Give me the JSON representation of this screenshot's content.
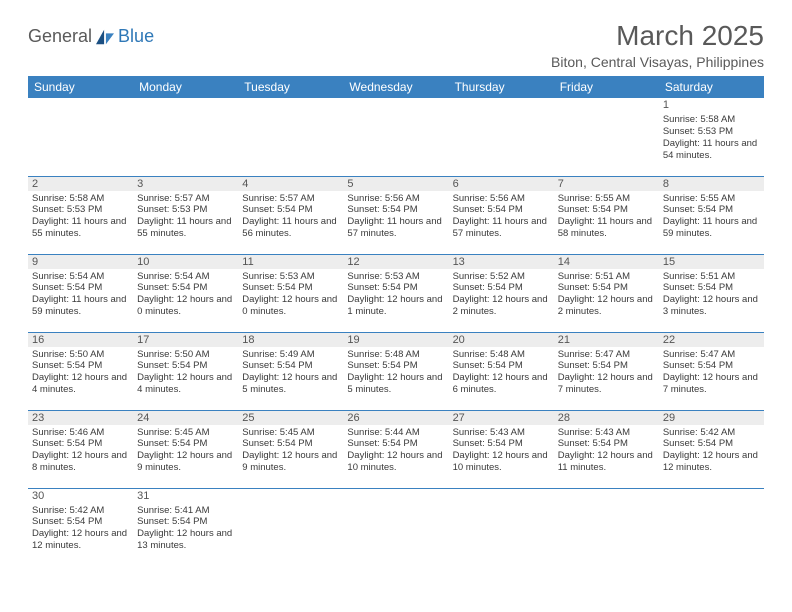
{
  "logo": {
    "text1": "General",
    "text2": "Blue"
  },
  "title": "March 2025",
  "location": "Biton, Central Visayas, Philippines",
  "colors": {
    "header_bg": "#3a81c0",
    "header_fg": "#ffffff",
    "divider": "#3a81c0",
    "daynum_bg": "#ededed",
    "text": "#595959"
  },
  "weekdays": [
    "Sunday",
    "Monday",
    "Tuesday",
    "Wednesday",
    "Thursday",
    "Friday",
    "Saturday"
  ],
  "weeks": [
    [
      null,
      null,
      null,
      null,
      null,
      null,
      {
        "n": "1",
        "sunrise": "Sunrise: 5:58 AM",
        "sunset": "Sunset: 5:53 PM",
        "daylight": "Daylight: 11 hours and 54 minutes."
      }
    ],
    [
      {
        "n": "2",
        "sunrise": "Sunrise: 5:58 AM",
        "sunset": "Sunset: 5:53 PM",
        "daylight": "Daylight: 11 hours and 55 minutes."
      },
      {
        "n": "3",
        "sunrise": "Sunrise: 5:57 AM",
        "sunset": "Sunset: 5:53 PM",
        "daylight": "Daylight: 11 hours and 55 minutes."
      },
      {
        "n": "4",
        "sunrise": "Sunrise: 5:57 AM",
        "sunset": "Sunset: 5:54 PM",
        "daylight": "Daylight: 11 hours and 56 minutes."
      },
      {
        "n": "5",
        "sunrise": "Sunrise: 5:56 AM",
        "sunset": "Sunset: 5:54 PM",
        "daylight": "Daylight: 11 hours and 57 minutes."
      },
      {
        "n": "6",
        "sunrise": "Sunrise: 5:56 AM",
        "sunset": "Sunset: 5:54 PM",
        "daylight": "Daylight: 11 hours and 57 minutes."
      },
      {
        "n": "7",
        "sunrise": "Sunrise: 5:55 AM",
        "sunset": "Sunset: 5:54 PM",
        "daylight": "Daylight: 11 hours and 58 minutes."
      },
      {
        "n": "8",
        "sunrise": "Sunrise: 5:55 AM",
        "sunset": "Sunset: 5:54 PM",
        "daylight": "Daylight: 11 hours and 59 minutes."
      }
    ],
    [
      {
        "n": "9",
        "sunrise": "Sunrise: 5:54 AM",
        "sunset": "Sunset: 5:54 PM",
        "daylight": "Daylight: 11 hours and 59 minutes."
      },
      {
        "n": "10",
        "sunrise": "Sunrise: 5:54 AM",
        "sunset": "Sunset: 5:54 PM",
        "daylight": "Daylight: 12 hours and 0 minutes."
      },
      {
        "n": "11",
        "sunrise": "Sunrise: 5:53 AM",
        "sunset": "Sunset: 5:54 PM",
        "daylight": "Daylight: 12 hours and 0 minutes."
      },
      {
        "n": "12",
        "sunrise": "Sunrise: 5:53 AM",
        "sunset": "Sunset: 5:54 PM",
        "daylight": "Daylight: 12 hours and 1 minute."
      },
      {
        "n": "13",
        "sunrise": "Sunrise: 5:52 AM",
        "sunset": "Sunset: 5:54 PM",
        "daylight": "Daylight: 12 hours and 2 minutes."
      },
      {
        "n": "14",
        "sunrise": "Sunrise: 5:51 AM",
        "sunset": "Sunset: 5:54 PM",
        "daylight": "Daylight: 12 hours and 2 minutes."
      },
      {
        "n": "15",
        "sunrise": "Sunrise: 5:51 AM",
        "sunset": "Sunset: 5:54 PM",
        "daylight": "Daylight: 12 hours and 3 minutes."
      }
    ],
    [
      {
        "n": "16",
        "sunrise": "Sunrise: 5:50 AM",
        "sunset": "Sunset: 5:54 PM",
        "daylight": "Daylight: 12 hours and 4 minutes."
      },
      {
        "n": "17",
        "sunrise": "Sunrise: 5:50 AM",
        "sunset": "Sunset: 5:54 PM",
        "daylight": "Daylight: 12 hours and 4 minutes."
      },
      {
        "n": "18",
        "sunrise": "Sunrise: 5:49 AM",
        "sunset": "Sunset: 5:54 PM",
        "daylight": "Daylight: 12 hours and 5 minutes."
      },
      {
        "n": "19",
        "sunrise": "Sunrise: 5:48 AM",
        "sunset": "Sunset: 5:54 PM",
        "daylight": "Daylight: 12 hours and 5 minutes."
      },
      {
        "n": "20",
        "sunrise": "Sunrise: 5:48 AM",
        "sunset": "Sunset: 5:54 PM",
        "daylight": "Daylight: 12 hours and 6 minutes."
      },
      {
        "n": "21",
        "sunrise": "Sunrise: 5:47 AM",
        "sunset": "Sunset: 5:54 PM",
        "daylight": "Daylight: 12 hours and 7 minutes."
      },
      {
        "n": "22",
        "sunrise": "Sunrise: 5:47 AM",
        "sunset": "Sunset: 5:54 PM",
        "daylight": "Daylight: 12 hours and 7 minutes."
      }
    ],
    [
      {
        "n": "23",
        "sunrise": "Sunrise: 5:46 AM",
        "sunset": "Sunset: 5:54 PM",
        "daylight": "Daylight: 12 hours and 8 minutes."
      },
      {
        "n": "24",
        "sunrise": "Sunrise: 5:45 AM",
        "sunset": "Sunset: 5:54 PM",
        "daylight": "Daylight: 12 hours and 9 minutes."
      },
      {
        "n": "25",
        "sunrise": "Sunrise: 5:45 AM",
        "sunset": "Sunset: 5:54 PM",
        "daylight": "Daylight: 12 hours and 9 minutes."
      },
      {
        "n": "26",
        "sunrise": "Sunrise: 5:44 AM",
        "sunset": "Sunset: 5:54 PM",
        "daylight": "Daylight: 12 hours and 10 minutes."
      },
      {
        "n": "27",
        "sunrise": "Sunrise: 5:43 AM",
        "sunset": "Sunset: 5:54 PM",
        "daylight": "Daylight: 12 hours and 10 minutes."
      },
      {
        "n": "28",
        "sunrise": "Sunrise: 5:43 AM",
        "sunset": "Sunset: 5:54 PM",
        "daylight": "Daylight: 12 hours and 11 minutes."
      },
      {
        "n": "29",
        "sunrise": "Sunrise: 5:42 AM",
        "sunset": "Sunset: 5:54 PM",
        "daylight": "Daylight: 12 hours and 12 minutes."
      }
    ],
    [
      {
        "n": "30",
        "sunrise": "Sunrise: 5:42 AM",
        "sunset": "Sunset: 5:54 PM",
        "daylight": "Daylight: 12 hours and 12 minutes."
      },
      {
        "n": "31",
        "sunrise": "Sunrise: 5:41 AM",
        "sunset": "Sunset: 5:54 PM",
        "daylight": "Daylight: 12 hours and 13 minutes."
      },
      null,
      null,
      null,
      null,
      null
    ]
  ]
}
